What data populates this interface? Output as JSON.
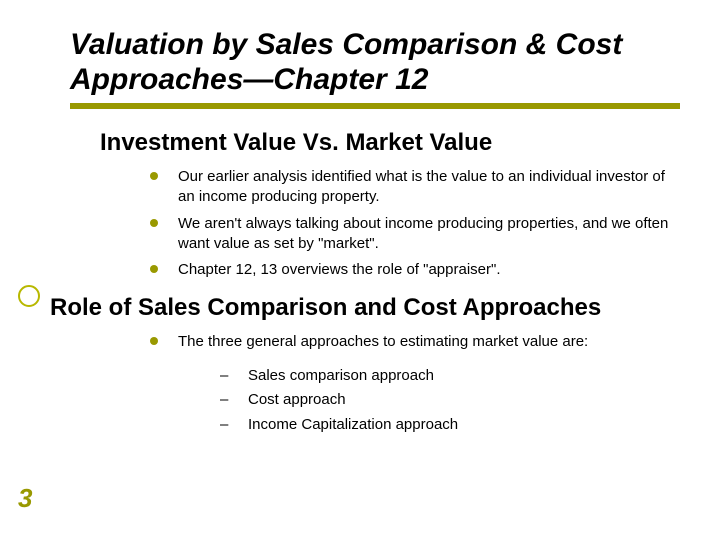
{
  "colors": {
    "accent": "#999900",
    "accent_light": "#b8b800",
    "text": "#000000",
    "background": "#ffffff"
  },
  "title": "Valuation by Sales Comparison & Cost Approaches—Chapter 12",
  "section1": {
    "heading": "Investment Value Vs. Market Value",
    "bullets": [
      "Our earlier analysis identified what is the value to an individual investor of an income producing property.",
      "We aren't always talking about income producing properties, and we often want value as set by \"market\".",
      "Chapter 12, 13 overviews the role of \"appraiser\"."
    ]
  },
  "section2": {
    "heading": "Role of Sales Comparison and Cost Approaches",
    "bullets": [
      "The three general approaches to estimating market value are:"
    ],
    "subbullets": [
      "Sales comparison approach",
      "Cost approach",
      "Income Capitalization approach"
    ]
  },
  "page_number": "3",
  "typography": {
    "title_fontsize": 30,
    "subhead_fontsize": 24,
    "body_fontsize": 15,
    "pagenum_fontsize": 26
  }
}
